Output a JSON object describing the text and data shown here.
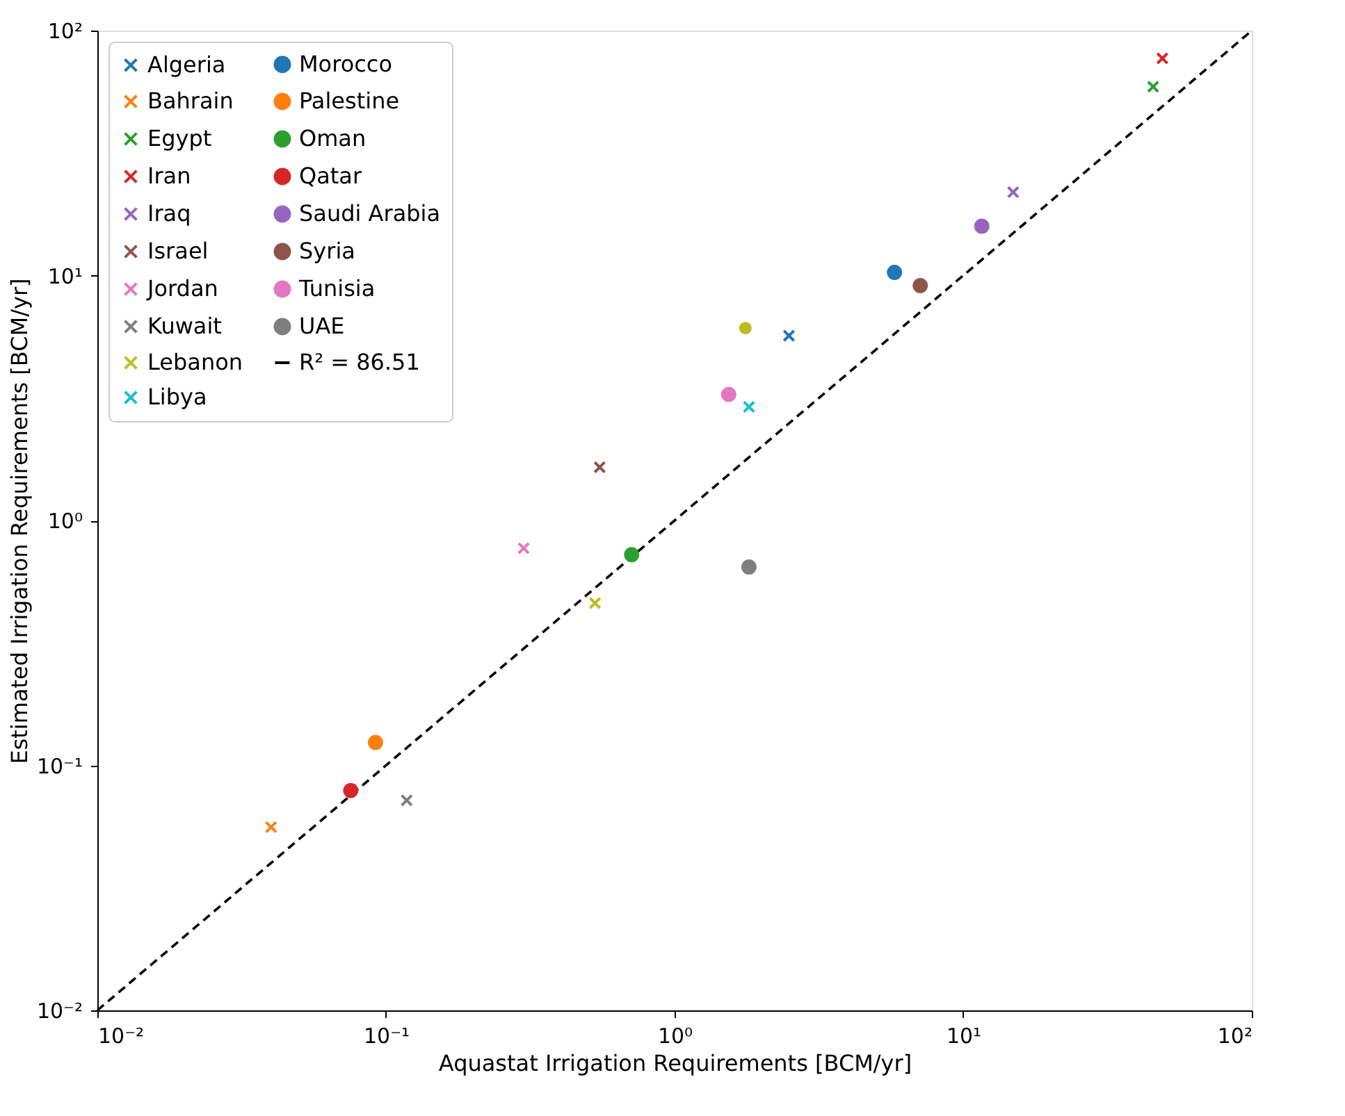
{
  "chart_data": {
    "type": "scatter",
    "xlabel": "Aquastat Irrigation Requirements [BCM/yr]",
    "ylabel": "Estimated Irrigation Requirements [BCM/yr]",
    "log": "xy",
    "grid": false,
    "legend": "top left",
    "xlim": [
      0.01,
      100
    ],
    "ylim": [
      0.01,
      100
    ],
    "xticks": [
      {
        "value": 0.01,
        "label": "10⁻²"
      },
      {
        "value": 0.1,
        "label": "10⁻¹"
      },
      {
        "value": 1,
        "label": "10⁰"
      },
      {
        "value": 10,
        "label": "10¹"
      },
      {
        "value": 100,
        "label": "10²"
      }
    ],
    "yticks": [
      {
        "value": 0.01,
        "label": "10⁻²"
      },
      {
        "value": 0.1,
        "label": "10⁻¹"
      },
      {
        "value": 1,
        "label": "10⁰"
      },
      {
        "value": 10,
        "label": "10¹"
      },
      {
        "value": 100,
        "label": "10²"
      }
    ],
    "series": [
      {
        "name": "Algeria",
        "color": "#1f77b4",
        "type": "scatter",
        "marker": "cross",
        "x": [
          2.49
        ],
        "values": [
          5.68
        ]
      },
      {
        "name": "Bahrain",
        "color": "#ff7f0e",
        "type": "scatter",
        "marker": "cross",
        "x": [
          0.04
        ],
        "values": [
          0.056
        ]
      },
      {
        "name": "Egypt",
        "color": "#2ca02c",
        "type": "scatter",
        "marker": "cross",
        "x": [
          45.5
        ],
        "values": [
          59
        ]
      },
      {
        "name": "Iran",
        "color": "#d62728",
        "type": "scatter",
        "marker": "cross",
        "x": [
          49
        ],
        "values": [
          77
        ]
      },
      {
        "name": "Iraq",
        "color": "#9467bd",
        "type": "scatter",
        "marker": "cross",
        "x": [
          14.9
        ],
        "values": [
          21.9
        ]
      },
      {
        "name": "Israel",
        "color": "#8c564b",
        "type": "scatter",
        "marker": "cross",
        "x": [
          0.55
        ],
        "values": [
          1.65
        ]
      },
      {
        "name": "Jordan",
        "color": "#e377c2",
        "type": "scatter",
        "marker": "cross",
        "x": [
          0.3
        ],
        "values": [
          0.77
        ]
      },
      {
        "name": "Kuwait",
        "color": "#7f7f7f",
        "type": "scatter",
        "marker": "cross",
        "x": [
          0.118
        ],
        "values": [
          0.072
        ]
      },
      {
        "name": "Lebanon",
        "color": "#bcbd22",
        "type": "scatter",
        "marker": "cross",
        "x": [
          0.53
        ],
        "values": [
          0.46
        ]
      },
      {
        "name": "Libya",
        "color": "#17becf",
        "type": "scatter",
        "marker": "cross",
        "x": [
          1.81
        ],
        "values": [
          2.91
        ]
      },
      {
        "name": "Morocco",
        "color": "#1f77b4",
        "type": "scatter",
        "marker": "circle",
        "x": [
          5.78
        ],
        "values": [
          10.3
        ]
      },
      {
        "name": "Palestine",
        "color": "#ff7f0e",
        "type": "scatter",
        "marker": "circle",
        "x": [
          0.092
        ],
        "values": [
          0.124
        ]
      },
      {
        "name": "Oman",
        "color": "#2ca02c",
        "type": "scatter",
        "marker": "circle",
        "x": [
          0.71
        ],
        "values": [
          0.725
        ]
      },
      {
        "name": "Qatar",
        "color": "#d62728",
        "type": "scatter",
        "marker": "circle",
        "x": [
          0.0755
        ],
        "values": [
          0.079
        ]
      },
      {
        "name": "Saudi Arabia",
        "color": "#9467bd",
        "type": "scatter",
        "marker": "circle",
        "x": [
          11.6
        ],
        "values": [
          15.9
        ]
      },
      {
        "name": "Syria",
        "color": "#8c564b",
        "type": "scatter",
        "marker": "circle",
        "x": [
          7.1
        ],
        "values": [
          9.1
        ]
      },
      {
        "name": "Tunisia",
        "color": "#e377c2",
        "type": "scatter",
        "marker": "circle",
        "x": [
          1.54
        ],
        "values": [
          3.27
        ]
      },
      {
        "name": "UAE",
        "color": "#7f7f7f",
        "type": "scatter",
        "marker": "circle",
        "x": [
          1.81
        ],
        "values": [
          0.646
        ]
      },
      {
        "color": "#bcbd22",
        "type": "scatter",
        "marker": "circle",
        "x": [
          1.76
        ],
        "values": [
          6.1
        ]
      },
      {
        "name": "R² = 86.51",
        "color": "#000000",
        "type": "line",
        "line_style": "dashed",
        "x": [
          0.01,
          100
        ],
        "values": [
          0.01,
          100
        ]
      }
    ]
  }
}
